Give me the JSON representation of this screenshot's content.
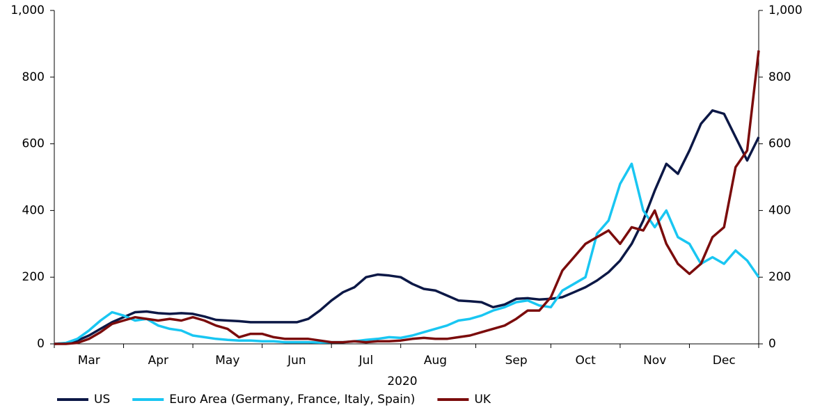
{
  "chart_data": {
    "type": "line",
    "x_label": "2020",
    "categories": [
      null,
      null,
      null,
      "Mar",
      null,
      null,
      null,
      null,
      null,
      "Apr",
      null,
      null,
      null,
      null,
      null,
      "May",
      null,
      null,
      null,
      null,
      null,
      "Jun",
      null,
      null,
      null,
      null,
      null,
      "Jul",
      null,
      null,
      null,
      null,
      null,
      "Aug",
      null,
      null,
      null,
      null,
      null,
      null,
      "Sep",
      null,
      null,
      null,
      null,
      null,
      "Oct",
      null,
      null,
      null,
      null,
      null,
      "Nov",
      null,
      null,
      null,
      null,
      null,
      "Dec",
      null,
      null,
      null
    ],
    "series": [
      {
        "name": "US",
        "color": "#0c1846",
        "values": [
          0,
          2,
          10,
          25,
          45,
          65,
          80,
          95,
          97,
          92,
          90,
          92,
          90,
          82,
          72,
          70,
          68,
          65,
          65,
          65,
          65,
          65,
          75,
          100,
          130,
          155,
          170,
          200,
          208,
          205,
          200,
          180,
          165,
          160,
          145,
          130,
          128,
          125,
          110,
          118,
          135,
          137,
          133,
          135,
          140,
          155,
          170,
          190,
          215,
          250,
          300,
          370,
          460,
          540,
          510,
          580,
          660,
          700,
          690,
          620,
          550,
          620
        ]
      },
      {
        "name": "Euro Area (Germany, France, Italy, Spain)",
        "color": "#19c6f2",
        "values": [
          0,
          3,
          15,
          40,
          70,
          95,
          85,
          70,
          75,
          55,
          45,
          40,
          25,
          20,
          15,
          12,
          10,
          10,
          8,
          8,
          5,
          5,
          5,
          4,
          5,
          5,
          8,
          12,
          15,
          20,
          18,
          25,
          35,
          45,
          55,
          70,
          75,
          85,
          100,
          110,
          125,
          130,
          115,
          110,
          160,
          180,
          200,
          330,
          370,
          480,
          540,
          400,
          350,
          400,
          320,
          300,
          240,
          260,
          240,
          280,
          250,
          200
        ]
      },
      {
        "name": "UK",
        "color": "#7b0c0c",
        "values": [
          0,
          0,
          3,
          15,
          35,
          60,
          70,
          80,
          75,
          70,
          75,
          70,
          80,
          70,
          55,
          45,
          20,
          30,
          30,
          20,
          15,
          15,
          15,
          10,
          5,
          5,
          8,
          5,
          8,
          8,
          10,
          15,
          18,
          15,
          15,
          20,
          25,
          35,
          45,
          55,
          75,
          100,
          100,
          140,
          220,
          260,
          300,
          320,
          340,
          300,
          350,
          340,
          400,
          300,
          240,
          210,
          240,
          320,
          350,
          530,
          580,
          880
        ]
      }
    ],
    "ylim": [
      0,
      1000
    ],
    "yticks": [
      0,
      200,
      400,
      600,
      800,
      {
        "value": 1000,
        "label": "1,000"
      }
    ],
    "y2lim": [
      0,
      1000
    ],
    "y2ticks": [
      0,
      200,
      400,
      600,
      800,
      {
        "value": 1000,
        "label": "1,000"
      }
    ],
    "grid": false
  }
}
